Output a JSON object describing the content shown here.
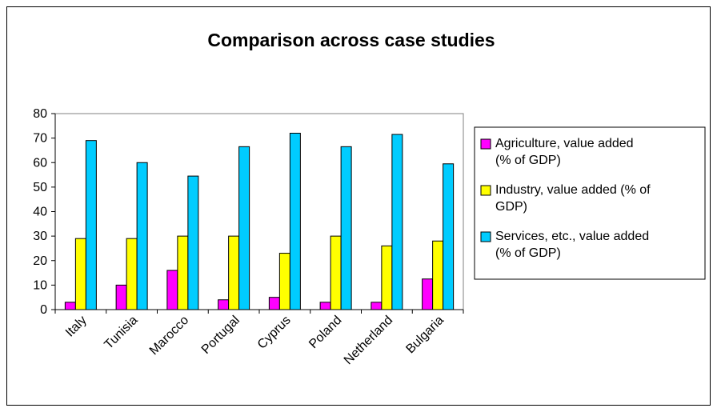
{
  "chart_data": {
    "type": "bar",
    "title": "Comparison across case studies",
    "xlabel": "",
    "ylabel": "",
    "categories": [
      "Italy",
      "Tunisia",
      "Marocco",
      "Portugal",
      "Cyprus",
      "Poland",
      "Netherland",
      "Bulgaria"
    ],
    "series": [
      {
        "name": "Agriculture, value added (% of GDP)",
        "legend_lines": [
          "Agriculture, value added",
          "(% of GDP)"
        ],
        "color": "#FF00FF",
        "values": [
          3,
          10,
          16,
          4,
          5,
          3,
          3,
          12.5
        ]
      },
      {
        "name": "Industry, value added (% of GDP)",
        "legend_lines": [
          "Industry, value added (% of",
          "GDP)"
        ],
        "color": "#FFFF00",
        "values": [
          29,
          29,
          30,
          30,
          23,
          30,
          26,
          28
        ]
      },
      {
        "name": "Services, etc., value added (% of GDP)",
        "legend_lines": [
          "Services, etc., value added",
          "(% of GDP)"
        ],
        "color": "#00CCFF",
        "values": [
          69,
          60,
          54.5,
          66.5,
          72,
          66.5,
          71.5,
          59.5
        ]
      }
    ],
    "ylim": [
      0,
      80
    ],
    "yticks": [
      0,
      10,
      20,
      30,
      40,
      50,
      60,
      70,
      80
    ],
    "grid": false,
    "legend_position": "right",
    "plot_background": "#FFFFFF",
    "bar_outline": "#000000"
  }
}
